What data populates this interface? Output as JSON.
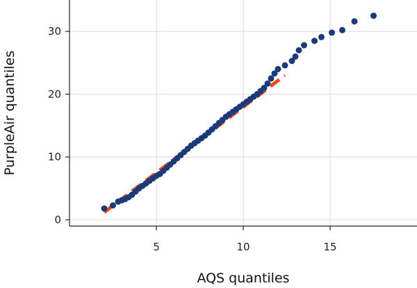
{
  "chart_data": {
    "type": "scatter",
    "title": "",
    "xlabel": "AQS quantiles",
    "ylabel": "PurpleAir quantiles",
    "xlim": [
      0,
      20
    ],
    "ylim": [
      -1,
      35
    ],
    "xticks": [
      5,
      10,
      15
    ],
    "yticks": [
      0,
      10,
      20,
      30
    ],
    "grid": true,
    "colors": {
      "points": "#1b3a7a",
      "fit_line": "#f04a1c"
    },
    "series": [
      {
        "type": "scatter",
        "x": [
          2.0,
          2.5,
          2.8,
          3.0,
          3.2,
          3.4,
          3.6,
          3.8,
          4.0,
          4.2,
          4.4,
          4.6,
          4.8,
          5.0,
          5.2,
          5.4,
          5.6,
          5.8,
          6.0,
          6.2,
          6.4,
          6.6,
          6.8,
          7.0,
          7.2,
          7.4,
          7.6,
          7.8,
          8.0,
          8.2,
          8.4,
          8.6,
          8.8,
          9.0,
          9.2,
          9.4,
          9.6,
          9.8,
          10.0,
          10.2,
          10.4,
          10.6,
          10.8,
          11.0,
          11.2,
          11.4,
          11.6,
          11.8,
          12.0,
          12.4,
          12.8,
          13.0,
          13.2,
          13.5,
          14.1,
          14.5,
          15.1,
          15.7,
          16.4,
          17.5
        ],
        "y": [
          1.8,
          2.3,
          2.9,
          3.1,
          3.3,
          3.6,
          4.0,
          4.5,
          5.0,
          5.4,
          5.8,
          6.2,
          6.6,
          7.0,
          7.3,
          7.8,
          8.3,
          8.8,
          9.3,
          9.8,
          10.3,
          10.8,
          11.3,
          11.8,
          12.2,
          12.6,
          13.0,
          13.4,
          13.9,
          14.4,
          14.9,
          15.4,
          15.9,
          16.4,
          16.8,
          17.2,
          17.6,
          18.0,
          18.4,
          18.8,
          19.2,
          19.6,
          20.0,
          20.5,
          21.0,
          21.7,
          22.5,
          23.3,
          24.0,
          24.6,
          25.3,
          26.0,
          27.0,
          27.8,
          28.5,
          29.1,
          29.8,
          30.2,
          31.6,
          32.5
        ]
      },
      {
        "type": "line",
        "style": "dashed",
        "x": [
          2.0,
          12.4
        ],
        "y": [
          1.2,
          23.0
        ]
      }
    ]
  }
}
